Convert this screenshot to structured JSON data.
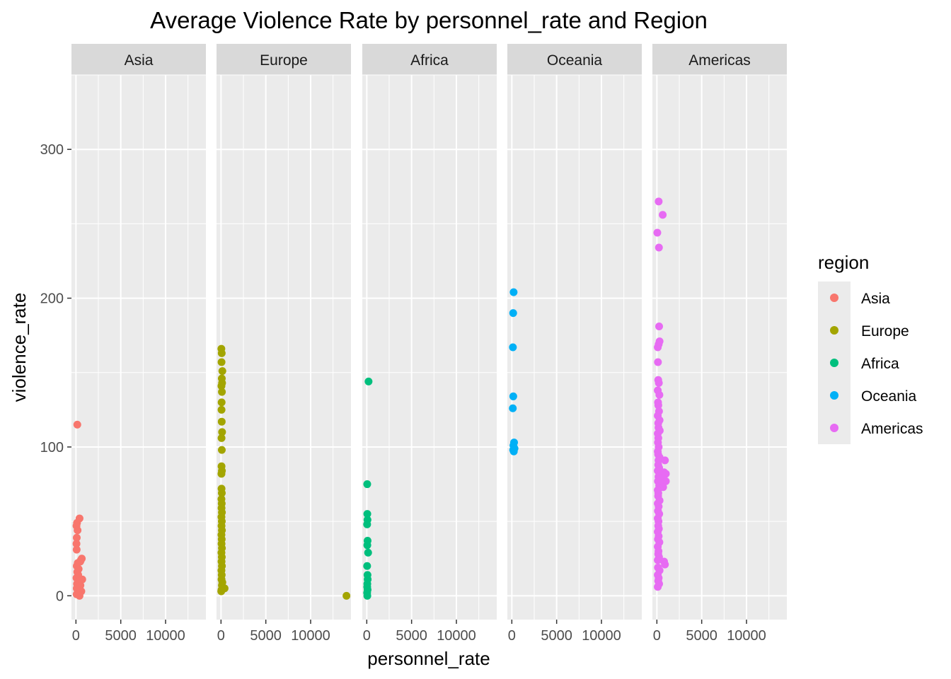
{
  "chart_data": {
    "type": "scatter",
    "title": "Average Violence Rate by personnel_rate and Region",
    "xlabel": "personnel_rate",
    "ylabel": "violence_rate",
    "xlim": [
      -500,
      14500
    ],
    "ylim": [
      -16,
      350
    ],
    "x_ticks": [
      0,
      5000,
      10000
    ],
    "x_tick_labels": [
      "0",
      "5000",
      "10000"
    ],
    "y_ticks": [
      0,
      100,
      200,
      300
    ],
    "y_tick_labels": [
      "0",
      "100",
      "200",
      "300"
    ],
    "facets": [
      "Asia",
      "Europe",
      "Africa",
      "Oceania",
      "Americas"
    ],
    "grid": true,
    "legend": {
      "title": "region",
      "position": "right"
    },
    "colors": {
      "Asia": "#F8766D",
      "Europe": "#A3A500",
      "Africa": "#00BF7D",
      "Oceania": "#00B0F6",
      "Americas": "#E76BF3",
      "panel_bg": "#EBEBEB",
      "strip_bg": "#D9D9D9",
      "grid": "#FFFFFF"
    },
    "series": [
      {
        "name": "Asia",
        "points": [
          [
            150,
            115
          ],
          [
            400,
            52
          ],
          [
            120,
            49
          ],
          [
            60,
            47
          ],
          [
            180,
            44
          ],
          [
            90,
            39
          ],
          [
            60,
            35
          ],
          [
            80,
            31
          ],
          [
            650,
            25
          ],
          [
            550,
            24
          ],
          [
            480,
            23
          ],
          [
            200,
            22
          ],
          [
            90,
            20
          ],
          [
            300,
            18
          ],
          [
            150,
            16
          ],
          [
            250,
            14
          ],
          [
            60,
            12
          ],
          [
            700,
            11
          ],
          [
            400,
            10
          ],
          [
            120,
            8
          ],
          [
            500,
            7
          ],
          [
            90,
            5
          ],
          [
            300,
            4
          ],
          [
            600,
            3
          ],
          [
            200,
            2
          ],
          [
            80,
            1
          ],
          [
            400,
            0
          ]
        ]
      },
      {
        "name": "Europe",
        "points": [
          [
            40,
            166
          ],
          [
            80,
            163
          ],
          [
            60,
            157
          ],
          [
            150,
            151
          ],
          [
            90,
            146
          ],
          [
            120,
            143
          ],
          [
            50,
            141
          ],
          [
            100,
            137
          ],
          [
            70,
            130
          ],
          [
            60,
            125
          ],
          [
            80,
            117
          ],
          [
            120,
            110
          ],
          [
            60,
            106
          ],
          [
            90,
            98
          ],
          [
            60,
            87
          ],
          [
            100,
            84
          ],
          [
            50,
            82
          ],
          [
            60,
            72
          ],
          [
            90,
            69
          ],
          [
            50,
            65
          ],
          [
            80,
            62
          ],
          [
            60,
            59
          ],
          [
            100,
            56
          ],
          [
            50,
            53
          ],
          [
            90,
            50
          ],
          [
            60,
            47
          ],
          [
            100,
            44
          ],
          [
            50,
            41
          ],
          [
            80,
            38
          ],
          [
            60,
            35
          ],
          [
            100,
            32
          ],
          [
            50,
            29
          ],
          [
            90,
            26
          ],
          [
            60,
            23
          ],
          [
            100,
            20
          ],
          [
            50,
            17
          ],
          [
            80,
            14
          ],
          [
            60,
            11
          ],
          [
            150,
            9
          ],
          [
            100,
            7
          ],
          [
            400,
            5
          ],
          [
            60,
            4
          ],
          [
            30,
            3
          ],
          [
            14000,
            0
          ]
        ]
      },
      {
        "name": "Africa",
        "points": [
          [
            200,
            144
          ],
          [
            50,
            75
          ],
          [
            60,
            55
          ],
          [
            80,
            51
          ],
          [
            40,
            48
          ],
          [
            90,
            37
          ],
          [
            60,
            34
          ],
          [
            150,
            29
          ],
          [
            40,
            20
          ],
          [
            80,
            14
          ],
          [
            100,
            11
          ],
          [
            60,
            8
          ],
          [
            50,
            6
          ],
          [
            90,
            4
          ],
          [
            40,
            2
          ],
          [
            60,
            0
          ]
        ]
      },
      {
        "name": "Oceania",
        "points": [
          [
            200,
            204
          ],
          [
            150,
            190
          ],
          [
            120,
            167
          ],
          [
            160,
            134
          ],
          [
            110,
            126
          ],
          [
            250,
            103
          ],
          [
            180,
            101
          ],
          [
            300,
            99
          ],
          [
            150,
            98
          ],
          [
            220,
            97
          ]
        ]
      },
      {
        "name": "Americas",
        "points": [
          [
            200,
            265
          ],
          [
            650,
            256
          ],
          [
            50,
            244
          ],
          [
            230,
            234
          ],
          [
            250,
            181
          ],
          [
            300,
            171
          ],
          [
            200,
            169
          ],
          [
            100,
            167
          ],
          [
            120,
            157
          ],
          [
            150,
            145
          ],
          [
            220,
            143
          ],
          [
            100,
            138
          ],
          [
            280,
            135
          ],
          [
            130,
            130
          ],
          [
            160,
            128
          ],
          [
            240,
            124
          ],
          [
            100,
            121
          ],
          [
            300,
            118
          ],
          [
            150,
            116
          ],
          [
            180,
            113
          ],
          [
            320,
            111
          ],
          [
            100,
            109
          ],
          [
            160,
            106
          ],
          [
            120,
            103
          ],
          [
            200,
            100
          ],
          [
            100,
            97
          ],
          [
            140,
            95
          ],
          [
            300,
            93
          ],
          [
            180,
            91
          ],
          [
            900,
            91
          ],
          [
            150,
            88
          ],
          [
            250,
            86
          ],
          [
            100,
            84
          ],
          [
            800,
            83
          ],
          [
            1000,
            82
          ],
          [
            180,
            80
          ],
          [
            620,
            79
          ],
          [
            120,
            77
          ],
          [
            1000,
            77
          ],
          [
            400,
            76
          ],
          [
            260,
            74
          ],
          [
            700,
            73
          ],
          [
            100,
            71
          ],
          [
            160,
            69
          ],
          [
            140,
            67
          ],
          [
            300,
            64
          ],
          [
            100,
            62
          ],
          [
            200,
            60
          ],
          [
            120,
            57
          ],
          [
            260,
            55
          ],
          [
            100,
            52
          ],
          [
            180,
            50
          ],
          [
            150,
            47
          ],
          [
            220,
            45
          ],
          [
            100,
            43
          ],
          [
            200,
            40
          ],
          [
            120,
            38
          ],
          [
            280,
            36
          ],
          [
            100,
            33
          ],
          [
            180,
            30
          ],
          [
            150,
            28
          ],
          [
            240,
            26
          ],
          [
            100,
            24
          ],
          [
            800,
            23
          ],
          [
            900,
            21
          ],
          [
            120,
            19
          ],
          [
            300,
            17
          ],
          [
            100,
            14
          ],
          [
            200,
            12
          ],
          [
            150,
            10
          ],
          [
            250,
            8
          ],
          [
            100,
            6
          ]
        ]
      }
    ]
  }
}
